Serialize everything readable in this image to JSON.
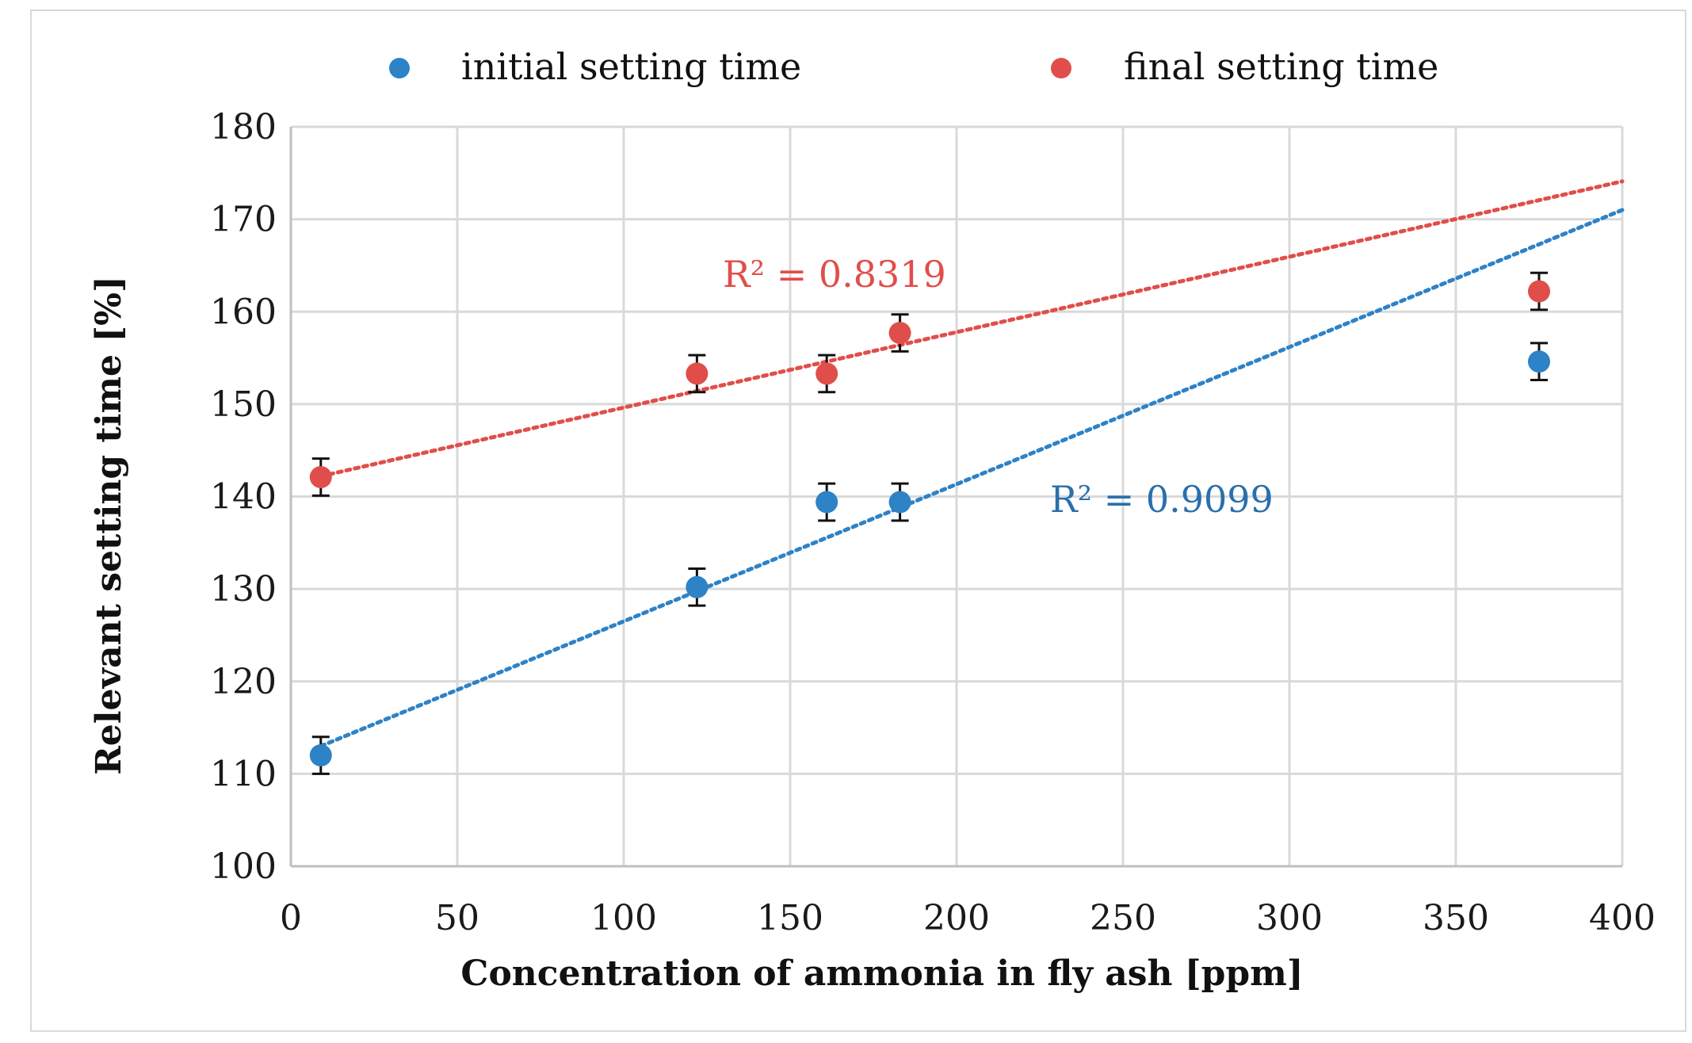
{
  "chart_data": {
    "type": "scatter",
    "title": "",
    "xlabel": "Concentration of ammonia in fly ash [ppm]",
    "ylabel": "Relevant setting time [%]",
    "xlim": [
      0,
      400
    ],
    "ylim": [
      100,
      180
    ],
    "x_ticks": [
      "0",
      "50",
      "100",
      "150",
      "200",
      "250",
      "300",
      "350",
      "400"
    ],
    "y_ticks": [
      "100",
      "110",
      "120",
      "130",
      "140",
      "150",
      "160",
      "170",
      "180"
    ],
    "grid": true,
    "legend_position": "top",
    "series": [
      {
        "name": "initial setting time",
        "color": "#2e82c6",
        "x": [
          9,
          122,
          161,
          183,
          375
        ],
        "y": [
          112,
          130.2,
          139.4,
          139.4,
          154.6
        ],
        "error": 2,
        "trendline": {
          "x_start": 9,
          "y_start": 113,
          "x_end": 400,
          "y_end": 171,
          "r2_label": "R² = 0.9099"
        }
      },
      {
        "name": "final setting time",
        "color": "#e04e4b",
        "x": [
          9,
          122,
          161,
          183,
          375
        ],
        "y": [
          142.1,
          153.3,
          153.3,
          157.7,
          162.2
        ],
        "error": 2,
        "trendline": {
          "x_start": 9,
          "y_start": 142.2,
          "x_end": 400,
          "y_end": 174.1,
          "r2_label": "R² = 0.8319"
        }
      }
    ]
  }
}
